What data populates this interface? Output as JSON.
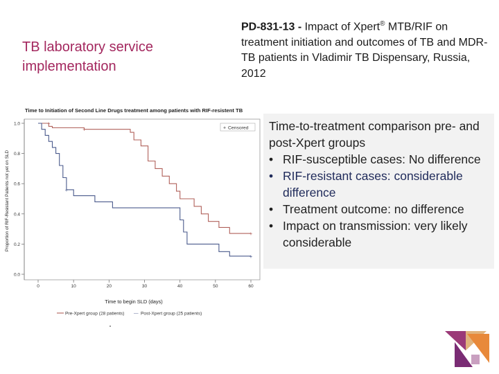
{
  "slide": {
    "section_title": "TB laboratory service implementation",
    "paper_id": "PD-831-13 -",
    "paper_title_pre": " Impact of Xpert",
    "paper_title_sup": "®",
    "paper_title_post": " MTB/RIF on treatment initiation and outcomes of TB and MDR-TB patients in Vladimir TB Dispensary, Russia, 2012"
  },
  "summary": {
    "heading": "Time-to-treatment comparison pre- and post-Xpert groups",
    "bullet_symbol": "•",
    "bullets": [
      "RIF-susceptible cases: No difference",
      "RIF-resistant cases: considerable difference",
      "Treatment outcome: no difference",
      "Impact on transmission: very likely considerable"
    ]
  },
  "colors": {
    "accent": "#a3275e",
    "pre_series": "#b0605a",
    "post_series": "#4a5a8c",
    "box_bg": "#f2f2f2"
  },
  "chart_data": {
    "type": "line",
    "title": "Time to Initiation of Second Line Drugs treatment among patients with RIF-resistent TB",
    "xlabel": "Time to begin SLD (days)",
    "ylabel": "Proportion of RIF-Resistant Patients not yet on SLD",
    "xlim": [
      0,
      60
    ],
    "ylim": [
      0,
      1
    ],
    "x_ticks": [
      0,
      10,
      20,
      30,
      40,
      50,
      60
    ],
    "y_ticks": [
      0.0,
      0.2,
      0.4,
      0.6,
      0.8,
      1.0
    ],
    "x_tick_labels": [
      "0",
      "10",
      "20",
      "30",
      "40",
      "50",
      "60"
    ],
    "y_tick_labels": [
      "0.0",
      "0.2",
      "0.4",
      "0.6",
      "0.8",
      "1.0"
    ],
    "censored_label": "Censored",
    "censored_symbol": "+",
    "legend_separator": "—",
    "series": [
      {
        "name": "Pre-Xpert group (28 patients)",
        "x": [
          0,
          3,
          3,
          4,
          4,
          13,
          13,
          26,
          26,
          27,
          27,
          29,
          29,
          31,
          31,
          33,
          33,
          35,
          35,
          37,
          37,
          39,
          39,
          40,
          40,
          44,
          44,
          46,
          46,
          48,
          48,
          51,
          51,
          54,
          54,
          60
        ],
        "y": [
          1.0,
          1.0,
          0.98,
          0.98,
          0.97,
          0.97,
          0.96,
          0.96,
          0.94,
          0.94,
          0.89,
          0.89,
          0.85,
          0.85,
          0.75,
          0.75,
          0.7,
          0.7,
          0.65,
          0.65,
          0.6,
          0.6,
          0.55,
          0.55,
          0.5,
          0.5,
          0.45,
          0.45,
          0.4,
          0.4,
          0.35,
          0.35,
          0.31,
          0.31,
          0.27,
          0.27
        ],
        "censored_x": [
          3,
          13,
          60
        ],
        "censored_y": [
          1.0,
          0.96,
          0.27
        ]
      },
      {
        "name": "Post-Xpert group (25 patients)",
        "x": [
          0,
          1,
          1,
          2,
          2,
          3,
          3,
          4,
          4,
          5,
          5,
          6,
          6,
          7,
          7,
          8,
          8,
          10,
          10,
          16,
          16,
          21,
          21,
          40,
          40,
          41,
          41,
          42,
          42,
          51,
          51,
          54,
          54,
          60
        ],
        "y": [
          1.0,
          1.0,
          0.96,
          0.96,
          0.92,
          0.92,
          0.88,
          0.88,
          0.84,
          0.84,
          0.8,
          0.8,
          0.72,
          0.72,
          0.64,
          0.64,
          0.56,
          0.56,
          0.52,
          0.52,
          0.48,
          0.48,
          0.44,
          0.44,
          0.36,
          0.36,
          0.28,
          0.28,
          0.2,
          0.2,
          0.15,
          0.15,
          0.12,
          0.12
        ],
        "censored_x": [
          8,
          60
        ],
        "censored_y": [
          0.56,
          0.12
        ]
      }
    ]
  }
}
